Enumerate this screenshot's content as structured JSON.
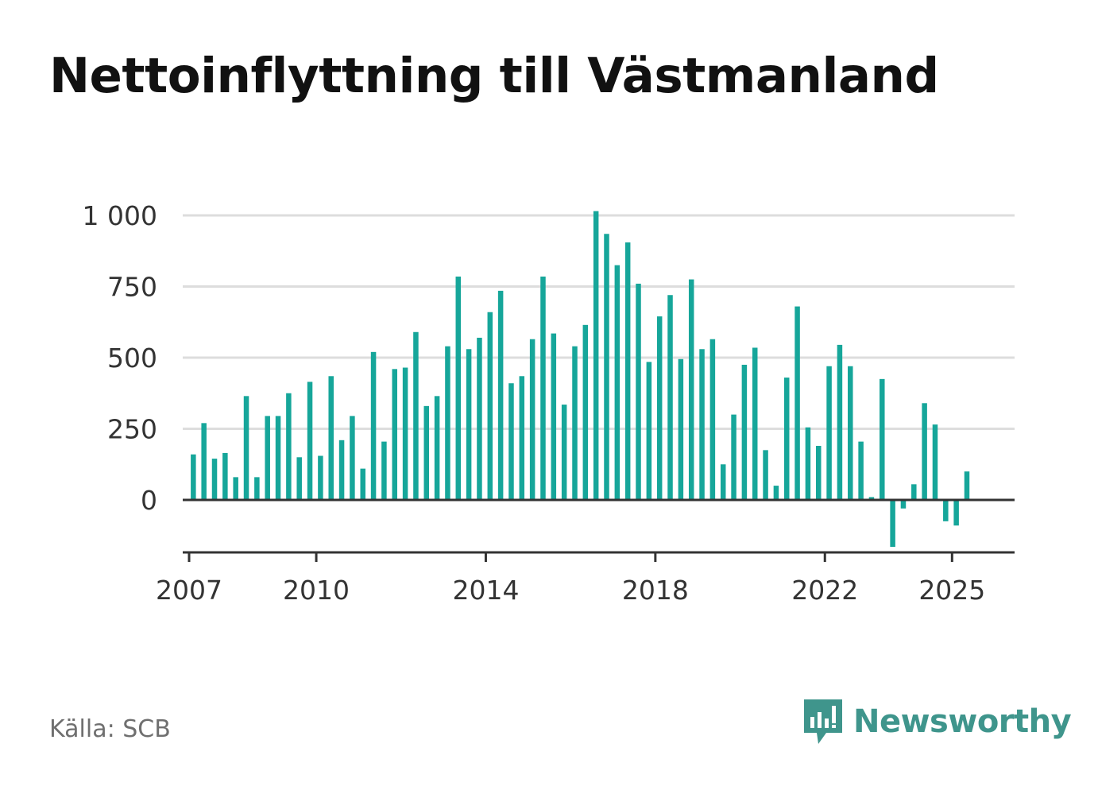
{
  "title": "Nettoinflyttning till Västmanland",
  "source": "Källa: SCB",
  "brand": {
    "name": "Newsworthy",
    "icon": "newsworthy-logo-icon",
    "color": "#3f958c"
  },
  "colors": {
    "bar": "#16a69a",
    "grid": "#dddddd",
    "axis": "#333333",
    "text": "#333333"
  },
  "chart_data": {
    "type": "bar",
    "title": "Nettoinflyttning till Västmanland",
    "xlabel": "",
    "ylabel": "",
    "frequency": "quarterly",
    "start": "2007-Q1",
    "xlim": [
      "2006-Q4",
      "2026-Q3"
    ],
    "ylim": [
      -180,
      1000
    ],
    "yticks": [
      0,
      250,
      500,
      750,
      1000
    ],
    "ytick_labels": [
      "0",
      "250",
      "500",
      "750",
      "1 000"
    ],
    "xticks": [
      "2007",
      "2010",
      "2014",
      "2018",
      "2022",
      "2025"
    ],
    "grid": true,
    "values": [
      160,
      270,
      145,
      165,
      80,
      365,
      80,
      295,
      295,
      375,
      150,
      415,
      155,
      435,
      210,
      295,
      110,
      520,
      205,
      460,
      465,
      590,
      330,
      365,
      540,
      785,
      530,
      570,
      660,
      735,
      410,
      435,
      565,
      785,
      585,
      335,
      540,
      615,
      1015,
      935,
      825,
      905,
      760,
      485,
      645,
      720,
      495,
      775,
      530,
      565,
      125,
      300,
      475,
      535,
      175,
      50,
      430,
      680,
      255,
      190,
      470,
      545,
      470,
      205,
      10,
      425,
      -165,
      -30,
      55,
      340,
      265,
      -75,
      -90,
      100
    ]
  }
}
